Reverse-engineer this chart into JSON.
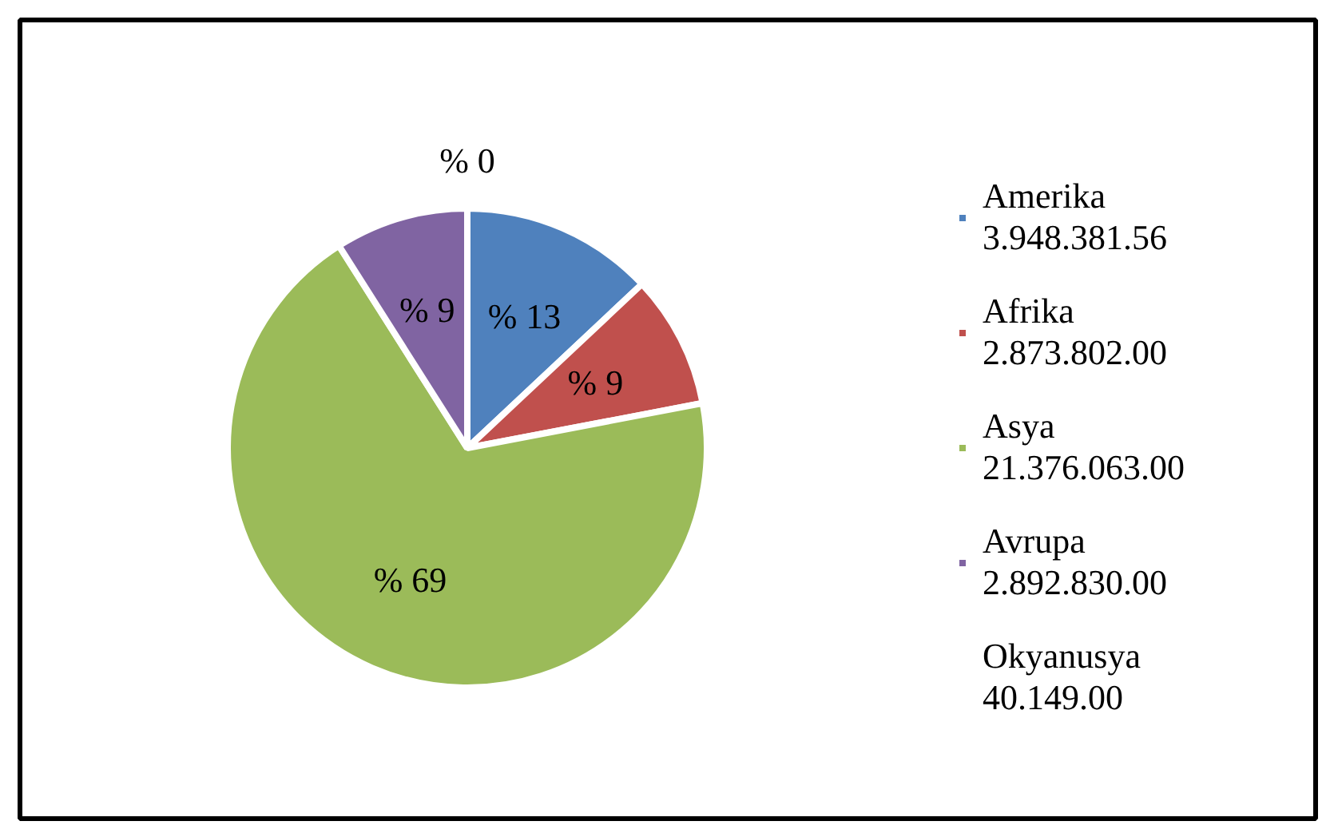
{
  "chart_data": {
    "type": "pie",
    "categories": [
      "Amerika\n3.948.381.56",
      "Afrika\n2.873.802.00",
      "Asya\n21.376.063.00",
      "Avrupa\n2.892.830.00",
      "Okyanusya\n40.149.00"
    ],
    "values": [
      13,
      9,
      69,
      9,
      0
    ],
    "colors": [
      "#4f81bd",
      "#c0504d",
      "#9bbb59",
      "#8064a2",
      "#4bacc6"
    ],
    "value_labels": [
      "% 13",
      "% 9",
      "% 69",
      "% 9",
      "% 0"
    ],
    "legend": "right"
  }
}
